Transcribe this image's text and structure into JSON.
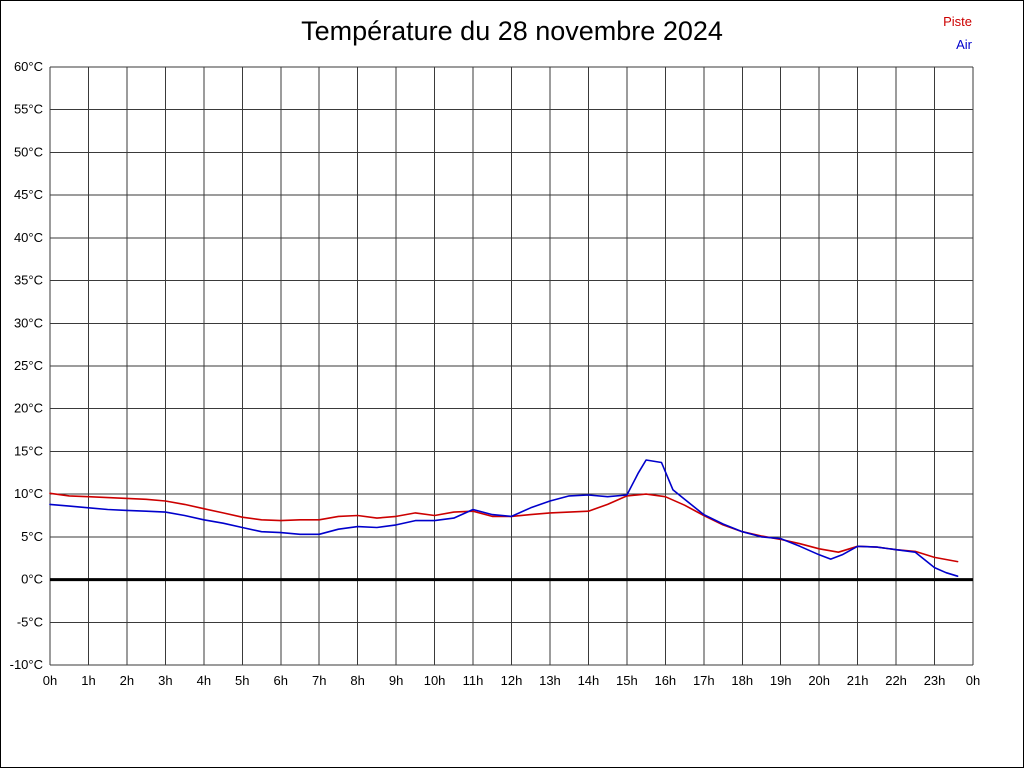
{
  "chart_data": {
    "type": "line",
    "title": "Température du 28 novembre 2024",
    "xlabel": "",
    "ylabel": "",
    "xlim": [
      0,
      24
    ],
    "ylim": [
      -10,
      60
    ],
    "y_tick_step": 5,
    "y_tick_suffix": "°C",
    "grid": true,
    "zero_line": true,
    "legend_position": "top-right",
    "x_ticks": [
      "0h",
      "1h",
      "2h",
      "3h",
      "4h",
      "5h",
      "6h",
      "7h",
      "8h",
      "9h",
      "10h",
      "11h",
      "12h",
      "13h",
      "14h",
      "15h",
      "16h",
      "17h",
      "18h",
      "19h",
      "20h",
      "21h",
      "22h",
      "23h",
      "0h"
    ],
    "legend": [
      {
        "name": "Piste",
        "color": "#cc0000"
      },
      {
        "name": "Air",
        "color": "#0000cc"
      }
    ],
    "series": [
      {
        "name": "Piste",
        "color": "#cc0000",
        "points": [
          [
            0,
            10.1
          ],
          [
            0.5,
            9.8
          ],
          [
            1,
            9.7
          ],
          [
            1.5,
            9.6
          ],
          [
            2,
            9.5
          ],
          [
            2.5,
            9.4
          ],
          [
            3,
            9.2
          ],
          [
            3.5,
            8.8
          ],
          [
            4,
            8.3
          ],
          [
            4.5,
            7.8
          ],
          [
            5,
            7.3
          ],
          [
            5.5,
            7.0
          ],
          [
            6,
            6.9
          ],
          [
            6.5,
            7.0
          ],
          [
            7,
            7.0
          ],
          [
            7.5,
            7.4
          ],
          [
            8,
            7.5
          ],
          [
            8.5,
            7.2
          ],
          [
            9,
            7.4
          ],
          [
            9.5,
            7.8
          ],
          [
            10,
            7.5
          ],
          [
            10.5,
            7.9
          ],
          [
            11,
            8.0
          ],
          [
            11.5,
            7.4
          ],
          [
            12,
            7.4
          ],
          [
            12.5,
            7.6
          ],
          [
            13,
            7.8
          ],
          [
            13.5,
            7.9
          ],
          [
            14,
            8.0
          ],
          [
            14.5,
            8.8
          ],
          [
            15,
            9.8
          ],
          [
            15.5,
            10.0
          ],
          [
            16,
            9.7
          ],
          [
            16.5,
            8.7
          ],
          [
            17,
            7.5
          ],
          [
            17.5,
            6.4
          ],
          [
            18,
            5.6
          ],
          [
            18.5,
            5.1
          ],
          [
            19,
            4.7
          ],
          [
            19.5,
            4.2
          ],
          [
            20,
            3.6
          ],
          [
            20.5,
            3.2
          ],
          [
            21,
            3.9
          ],
          [
            21.5,
            3.8
          ],
          [
            22,
            3.5
          ],
          [
            22.5,
            3.3
          ],
          [
            23,
            2.6
          ],
          [
            23.6,
            2.1
          ]
        ]
      },
      {
        "name": "Air",
        "color": "#0000cc",
        "points": [
          [
            0,
            8.8
          ],
          [
            0.5,
            8.6
          ],
          [
            1,
            8.4
          ],
          [
            1.5,
            8.2
          ],
          [
            2,
            8.1
          ],
          [
            2.5,
            8.0
          ],
          [
            3,
            7.9
          ],
          [
            3.5,
            7.5
          ],
          [
            4,
            7.0
          ],
          [
            4.5,
            6.6
          ],
          [
            5,
            6.1
          ],
          [
            5.5,
            5.6
          ],
          [
            6,
            5.5
          ],
          [
            6.5,
            5.3
          ],
          [
            7,
            5.3
          ],
          [
            7.5,
            5.9
          ],
          [
            8,
            6.2
          ],
          [
            8.5,
            6.1
          ],
          [
            9,
            6.4
          ],
          [
            9.5,
            6.9
          ],
          [
            10,
            6.9
          ],
          [
            10.5,
            7.2
          ],
          [
            11,
            8.2
          ],
          [
            11.5,
            7.6
          ],
          [
            12,
            7.4
          ],
          [
            12.5,
            8.4
          ],
          [
            13,
            9.2
          ],
          [
            13.5,
            9.8
          ],
          [
            14,
            9.9
          ],
          [
            14.5,
            9.7
          ],
          [
            15,
            9.9
          ],
          [
            15.3,
            12.5
          ],
          [
            15.5,
            14.0
          ],
          [
            15.9,
            13.7
          ],
          [
            16.2,
            10.5
          ],
          [
            16.5,
            9.4
          ],
          [
            17,
            7.6
          ],
          [
            17.5,
            6.5
          ],
          [
            18,
            5.6
          ],
          [
            18.5,
            5.0
          ],
          [
            19,
            4.8
          ],
          [
            19.5,
            3.9
          ],
          [
            20,
            2.9
          ],
          [
            20.3,
            2.4
          ],
          [
            20.6,
            2.9
          ],
          [
            21,
            3.9
          ],
          [
            21.5,
            3.8
          ],
          [
            22,
            3.5
          ],
          [
            22.5,
            3.2
          ],
          [
            23,
            1.4
          ],
          [
            23.3,
            0.8
          ],
          [
            23.6,
            0.4
          ]
        ]
      }
    ]
  }
}
